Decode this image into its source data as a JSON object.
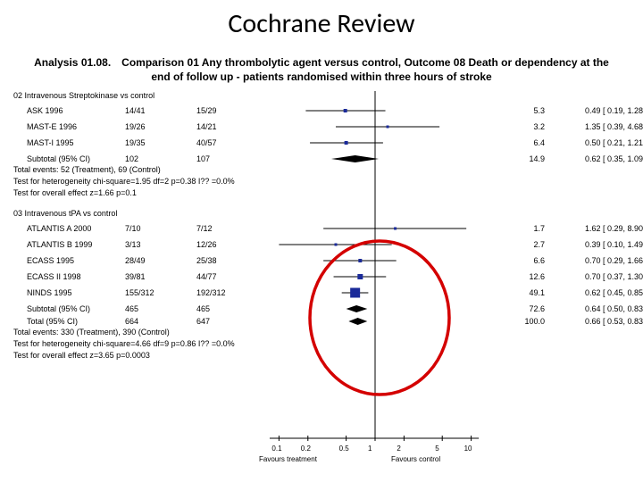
{
  "title": "Cochrane Review",
  "analysis_header": "Analysis 01.08. Comparison 01 Any thrombolytic agent versus control, Outcome 08 Death or dependency at the end of follow up - patients randomised within three hours of stroke",
  "plot": {
    "type": "forest",
    "scale": "log",
    "xlim": [
      0.05,
      20
    ],
    "ticks": [
      0.1,
      0.2,
      0.5,
      1,
      2,
      5,
      10
    ],
    "tick_labels": [
      "0.1",
      "0.2",
      "0.5",
      "1",
      "2",
      "5",
      "10"
    ],
    "null_line_x": 1,
    "favours_left": "Favours treatment",
    "favours_right": "Favours control",
    "marker_color": "#1a2a99",
    "diamond_color": "#000000",
    "line_color": "#000000",
    "circle_color": "#d40000",
    "circle_stroke_width": 3.5,
    "background": "#ffffff",
    "label_fontsize": 9,
    "tick_fontsize": 8
  },
  "groups": [
    {
      "header": "02 Intravenous Streptokinase vs control",
      "rows": [
        {
          "label": "ASK 1996",
          "trt": "14/41",
          "ctl": "15/29",
          "weight": "5.3",
          "ci": "0.49 [ 0.19, 1.28 ]",
          "est": 0.49,
          "lo": 0.19,
          "hi": 1.28,
          "size": 4
        },
        {
          "label": "MAST-E 1996",
          "trt": "19/26",
          "ctl": "14/21",
          "weight": "3.2",
          "ci": "1.35 [ 0.39, 4.68 ]",
          "est": 1.35,
          "lo": 0.39,
          "hi": 4.68,
          "size": 3
        },
        {
          "label": "MAST-I 1995",
          "trt": "19/35",
          "ctl": "40/57",
          "weight": "6.4",
          "ci": "0.50 [ 0.21, 1.21 ]",
          "est": 0.5,
          "lo": 0.21,
          "hi": 1.21,
          "size": 4
        }
      ],
      "subtotal": {
        "label": "Subtotal (95% CI)",
        "trt": "102",
        "ctl": "107",
        "weight": "14.9",
        "ci": "0.62 [ 0.35, 1.09 ]",
        "est": 0.62,
        "lo": 0.35,
        "hi": 1.09
      },
      "notes": [
        "Total events: 52 (Treatment), 69 (Control)",
        "Test for heterogeneity chi-square=1.95 df=2 p=0.38 I?? =0.0%",
        "Test for overall effect z=1.66   p=0.1"
      ]
    },
    {
      "header": "03 Intravenous tPA vs control",
      "rows": [
        {
          "label": "ATLANTIS A 2000",
          "trt": "7/10",
          "ctl": "7/12",
          "weight": "1.7",
          "ci": "1.62 [ 0.29, 8.90 ]",
          "est": 1.62,
          "lo": 0.29,
          "hi": 8.9,
          "size": 3
        },
        {
          "label": "ATLANTIS B 1999",
          "trt": "3/13",
          "ctl": "12/26",
          "weight": "2.7",
          "ci": "0.39 [ 0.10, 1.49 ]",
          "est": 0.39,
          "lo": 0.1,
          "hi": 1.49,
          "size": 3
        },
        {
          "label": "ECASS 1995",
          "trt": "28/49",
          "ctl": "25/38",
          "weight": "6.6",
          "ci": "0.70 [ 0.29, 1.66 ]",
          "est": 0.7,
          "lo": 0.29,
          "hi": 1.66,
          "size": 4
        },
        {
          "label": "ECASS II 1998",
          "trt": "39/81",
          "ctl": "44/77",
          "weight": "12.6",
          "ci": "0.70 [ 0.37, 1.30 ]",
          "est": 0.7,
          "lo": 0.37,
          "hi": 1.3,
          "size": 6
        },
        {
          "label": "NINDS 1995",
          "trt": "155/312",
          "ctl": "192/312",
          "weight": "49.1",
          "ci": "0.62 [ 0.45, 0.85 ]",
          "est": 0.62,
          "lo": 0.45,
          "hi": 0.85,
          "size": 11
        }
      ],
      "subtotal": {
        "label": "Subtotal (95% CI)",
        "trt": "465",
        "ctl": "465",
        "weight": "72.6",
        "ci": "0.64 [ 0.50, 0.83 ]",
        "est": 0.64,
        "lo": 0.5,
        "hi": 0.83
      },
      "total": {
        "label": "Total (95% CI)",
        "trt": "664",
        "ctl": "647",
        "weight": "100.0",
        "ci": "0.66 [ 0.53, 0.83 ]",
        "est": 0.66,
        "lo": 0.53,
        "hi": 0.83
      },
      "notes": [
        "Total events: 330 (Treatment), 390 (Control)",
        "Test for heterogeneity chi-square=4.66 df=9 p=0.86 I?? =0.0%",
        "Test for overall effect z=3.65   p=0.0003"
      ]
    }
  ]
}
